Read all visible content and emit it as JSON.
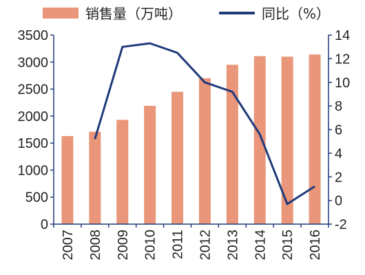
{
  "chart_data": {
    "type": "bar+line",
    "categories": [
      "2007",
      "2008",
      "2009",
      "2010",
      "2011",
      "2012",
      "2013",
      "2014",
      "2015",
      "2016"
    ],
    "series": [
      {
        "name": "销售量（万吨）",
        "type": "bar",
        "axis": "left",
        "values": [
          1630,
          1710,
          1930,
          2190,
          2450,
          2700,
          2950,
          3110,
          3100,
          3140
        ]
      },
      {
        "name": "同比（%）",
        "type": "line",
        "axis": "right",
        "values": [
          null,
          5.2,
          13.0,
          13.3,
          12.5,
          10.0,
          9.2,
          5.6,
          -0.3,
          1.2
        ]
      }
    ],
    "left_axis": {
      "ylim": [
        0,
        3500
      ],
      "ticks": [
        0,
        500,
        1000,
        1500,
        2000,
        2500,
        3000,
        3500
      ]
    },
    "right_axis": {
      "ylim": [
        -2,
        14
      ],
      "ticks": [
        -2,
        0,
        2,
        4,
        6,
        8,
        10,
        12,
        14
      ]
    },
    "legend_position": "top",
    "grid": false,
    "colors": {
      "bar": "#E9967A",
      "line": "#1F3A7A",
      "axis": "#1F3A7A"
    }
  }
}
